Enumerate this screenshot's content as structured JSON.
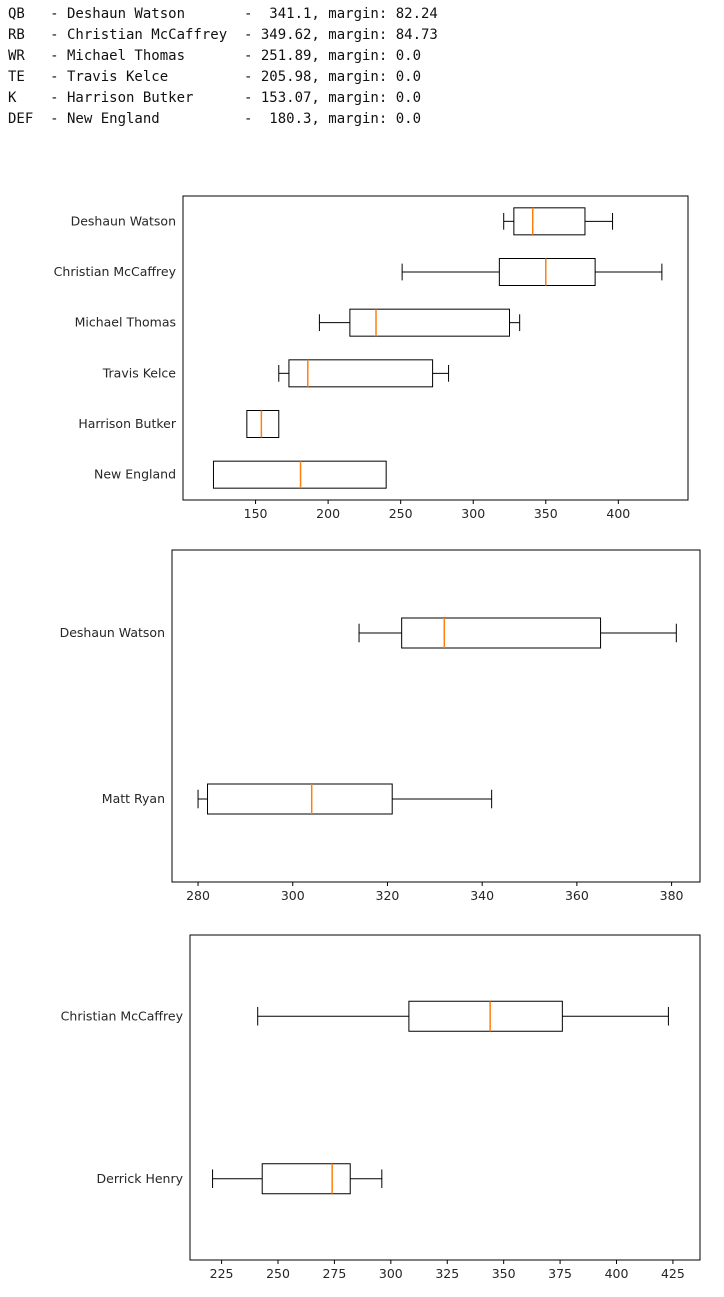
{
  "page": {
    "background": "#ffffff"
  },
  "summary": {
    "rows": [
      {
        "position": "QB",
        "name": "Deshaun Watson",
        "points": "341.1",
        "margin": "82.24"
      },
      {
        "position": "RB",
        "name": "Christian McCaffrey",
        "points": "349.62",
        "margin": "84.73"
      },
      {
        "position": "WR",
        "name": "Michael Thomas",
        "points": "251.89",
        "margin": "0.0"
      },
      {
        "position": "TE",
        "name": "Travis Kelce",
        "points": "205.98",
        "margin": "0.0"
      },
      {
        "position": "K",
        "name": "Harrison Butker",
        "points": "153.07",
        "margin": "0.0"
      },
      {
        "position": "DEF",
        "name": "New England",
        "points": "180.3",
        "margin": "0.0"
      }
    ]
  },
  "colors": {
    "box_edge": "#000000",
    "median": "#ff7f0e",
    "axis": "#000000",
    "text": "#262626",
    "box_fill": "#ffffff"
  },
  "chart_data": [
    {
      "type": "boxplot",
      "orientation": "horizontal",
      "title": "",
      "xlabel": "",
      "ylabel": "",
      "grid": false,
      "legend": "none",
      "categories": [
        "Deshaun Watson",
        "Christian McCaffrey",
        "Michael Thomas",
        "Travis Kelce",
        "Harrison Butker",
        "New England"
      ],
      "xticks": [
        150,
        200,
        250,
        300,
        350,
        400
      ],
      "xlim": [
        100,
        448
      ],
      "median_color": "#ff7f0e",
      "series": [
        {
          "name": "Deshaun Watson",
          "whislo": 321,
          "q1": 328,
          "med": 341,
          "q3": 377,
          "whishi": 396
        },
        {
          "name": "Christian McCaffrey",
          "whislo": 251,
          "q1": 318,
          "med": 350,
          "q3": 384,
          "whishi": 430
        },
        {
          "name": "Michael Thomas",
          "whislo": 194,
          "q1": 215,
          "med": 233,
          "q3": 325,
          "whishi": 332
        },
        {
          "name": "Travis Kelce",
          "whislo": 166,
          "q1": 173,
          "med": 186,
          "q3": 272,
          "whishi": 283
        },
        {
          "name": "Harrison Butker",
          "whislo": 144,
          "q1": 144,
          "med": 154,
          "q3": 166,
          "whishi": 166
        },
        {
          "name": "New England",
          "whislo": 121,
          "q1": 121,
          "med": 181,
          "q3": 240,
          "whishi": 240
        }
      ]
    },
    {
      "type": "boxplot",
      "orientation": "horizontal",
      "title": "",
      "xlabel": "",
      "ylabel": "",
      "grid": false,
      "legend": "none",
      "categories": [
        "Deshaun Watson",
        "Matt Ryan"
      ],
      "xticks": [
        280,
        300,
        320,
        340,
        360,
        380
      ],
      "xlim": [
        274.5,
        386
      ],
      "median_color": "#ff7f0e",
      "series": [
        {
          "name": "Deshaun Watson",
          "whislo": 314,
          "q1": 323,
          "med": 332,
          "q3": 365,
          "whishi": 381
        },
        {
          "name": "Matt Ryan",
          "whislo": 280,
          "q1": 282,
          "med": 304,
          "q3": 321,
          "whishi": 342
        }
      ]
    },
    {
      "type": "boxplot",
      "orientation": "horizontal",
      "title": "",
      "xlabel": "",
      "ylabel": "",
      "grid": false,
      "legend": "none",
      "categories": [
        "Christian McCaffrey",
        "Derrick Henry"
      ],
      "xticks": [
        225,
        250,
        275,
        300,
        325,
        350,
        375,
        400,
        425
      ],
      "xlim": [
        211,
        437
      ],
      "median_color": "#ff7f0e",
      "series": [
        {
          "name": "Christian McCaffrey",
          "whislo": 241,
          "q1": 308,
          "med": 344,
          "q3": 376,
          "whishi": 423
        },
        {
          "name": "Derrick Henry",
          "whislo": 221,
          "q1": 243,
          "med": 274,
          "q3": 282,
          "whishi": 296
        }
      ]
    }
  ]
}
